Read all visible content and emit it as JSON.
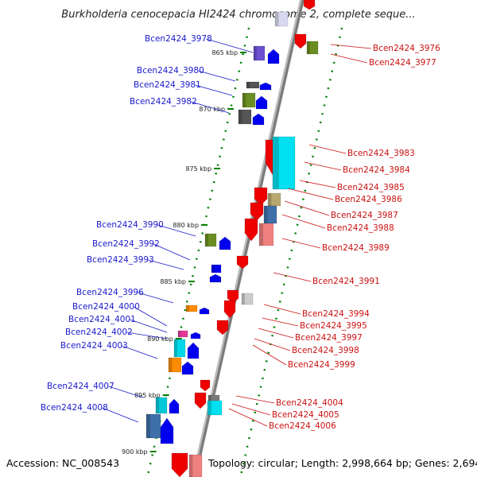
{
  "title": "Burkholderia cenocepacia HI2424 chromosome 2, complete seque...",
  "footer": {
    "accession": "Accession: NC_008543",
    "topology": "Topology: circular; Length: 2,998,664 bp; Genes: 2,694"
  },
  "colors": {
    "forward": "#e8000b",
    "reverse": "#0000dd",
    "label_forward": "#cc1111",
    "label_reverse": "#1a1acc",
    "backbone": "#888888",
    "tick": "#008000"
  },
  "ticks": [
    "865 kbp",
    "870 kbp",
    "875 kbp",
    "880 kbp",
    "885 kbp",
    "890 kbp",
    "895 kbp",
    "900 kbp"
  ],
  "left_labels": [
    "Bcen2424_3978",
    "Bcen2424_3980",
    "Bcen2424_3981",
    "Bcen2424_3982",
    "Bcen2424_3990",
    "Bcen2424_3992",
    "Bcen2424_3993",
    "Bcen2424_3996",
    "Bcen2424_4000",
    "Bcen2424_4001",
    "Bcen2424_4002",
    "Bcen2424_4003",
    "Bcen2424_4007",
    "Bcen2424_4008"
  ],
  "right_labels": [
    "Bcen2424_3976",
    "Bcen2424_3977",
    "Bcen2424_3983",
    "Bcen2424_3984",
    "Bcen2424_3985",
    "Bcen2424_3986",
    "Bcen2424_3987",
    "Bcen2424_3988",
    "Bcen2424_3989",
    "Bcen2424_3991",
    "Bcen2424_3994",
    "Bcen2424_3995",
    "Bcen2424_3997",
    "Bcen2424_3998",
    "Bcen2424_3999",
    "Bcen2424_4004",
    "Bcen2424_4005",
    "Bcen2424_4006"
  ]
}
